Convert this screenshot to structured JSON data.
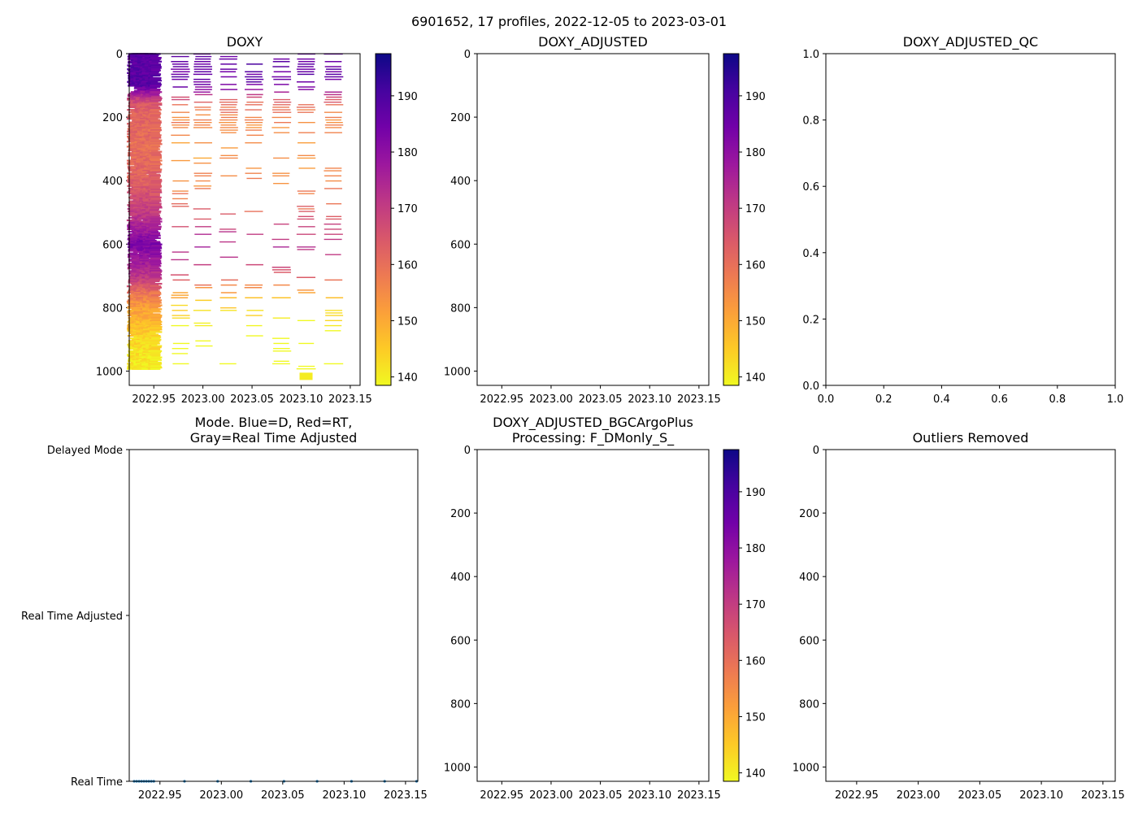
{
  "figure": {
    "suptitle": "6901652, 17 profiles, 2022-12-05 to 2023-03-01"
  },
  "colormap": {
    "name": "plasma_r",
    "stops": [
      "#f0f921",
      "#fdca26",
      "#fb9f3a",
      "#ed7953",
      "#d8576b",
      "#bd3786",
      "#9c179e",
      "#7201a8",
      "#46039f",
      "#0d0887"
    ]
  },
  "chart_data": [
    {
      "id": "doxy",
      "type": "heatmap",
      "title": "DOXY",
      "xlim": [
        2022.925,
        2023.16
      ],
      "ylim": [
        1045,
        0
      ],
      "xticks": [
        "2022.95",
        "2023.00",
        "2023.05",
        "2023.10",
        "2023.15"
      ],
      "xtick_values": [
        2022.95,
        2023.0,
        2023.05,
        2023.1,
        2023.15
      ],
      "yticks": [
        "0",
        "200",
        "400",
        "600",
        "800",
        "1000"
      ],
      "ytick_values": [
        0,
        200,
        400,
        600,
        800,
        1000
      ],
      "colorbar": {
        "vmin": 138.5,
        "vmax": 197.5,
        "ticks": [
          "140",
          "150",
          "160",
          "170",
          "180",
          "190"
        ],
        "tick_values": [
          140,
          150,
          160,
          170,
          180,
          190
        ]
      },
      "profiles": [
        {
          "time": 2022.929,
          "spacing": 4,
          "max_depth": 995
        },
        {
          "time": 2022.932,
          "spacing": 4,
          "max_depth": 995
        },
        {
          "time": 2022.935,
          "spacing": 4,
          "max_depth": 995
        },
        {
          "time": 2022.938,
          "spacing": 4,
          "max_depth": 995
        },
        {
          "time": 2022.941,
          "spacing": 4,
          "max_depth": 995
        },
        {
          "time": 2022.944,
          "spacing": 4,
          "max_depth": 995
        },
        {
          "time": 2022.947,
          "spacing": 4,
          "max_depth": 995
        },
        {
          "time": 2022.95,
          "spacing": 4,
          "max_depth": 995
        },
        {
          "time": 2022.952,
          "spacing": 4,
          "max_depth": 995
        },
        {
          "time": 2022.977,
          "spacing": 8,
          "max_depth": 985
        },
        {
          "time": 2023.0,
          "spacing": 8,
          "max_depth": 985
        },
        {
          "time": 2023.026,
          "spacing": 8,
          "max_depth": 985
        },
        {
          "time": 2023.052,
          "spacing": 8,
          "max_depth": 985
        },
        {
          "time": 2023.08,
          "spacing": 8,
          "max_depth": 985
        },
        {
          "time": 2023.105,
          "spacing": 8,
          "max_depth": 1030
        },
        {
          "time": 2023.133,
          "spacing": 8,
          "max_depth": 985
        }
      ],
      "depth_profile": {
        "depth": [
          0,
          100,
          130,
          160,
          200,
          300,
          400,
          500,
          600,
          700,
          760,
          800,
          900,
          1000
        ],
        "doxy": [
          188,
          188,
          175,
          164,
          162,
          160,
          163,
          170,
          183,
          172,
          158,
          152,
          143,
          140
        ]
      }
    },
    {
      "id": "doxy_adjusted",
      "type": "heatmap",
      "title": "DOXY_ADJUSTED",
      "xlim": [
        2022.925,
        2023.16
      ],
      "ylim": [
        1045,
        0
      ],
      "xticks": [
        "2022.95",
        "2023.00",
        "2023.05",
        "2023.10",
        "2023.15"
      ],
      "xtick_values": [
        2022.95,
        2023.0,
        2023.05,
        2023.1,
        2023.15
      ],
      "yticks": [
        "0",
        "200",
        "400",
        "600",
        "800",
        "1000"
      ],
      "ytick_values": [
        0,
        200,
        400,
        600,
        800,
        1000
      ],
      "colorbar": {
        "vmin": 138.5,
        "vmax": 197.5,
        "ticks": [
          "140",
          "150",
          "160",
          "170",
          "180",
          "190"
        ],
        "tick_values": [
          140,
          150,
          160,
          170,
          180,
          190
        ]
      },
      "values": []
    },
    {
      "id": "doxy_adjusted_qc",
      "type": "scatter",
      "title": "DOXY_ADJUSTED_QC",
      "xlim": [
        0,
        1
      ],
      "ylim": [
        0,
        1
      ],
      "xticks": [
        "0.0",
        "0.2",
        "0.4",
        "0.6",
        "0.8",
        "1.0"
      ],
      "xtick_values": [
        0,
        0.2,
        0.4,
        0.6,
        0.8,
        1.0
      ],
      "yticks": [
        "0.0",
        "0.2",
        "0.4",
        "0.6",
        "0.8",
        "1.0"
      ],
      "ytick_values": [
        0,
        0.2,
        0.4,
        0.6,
        0.8,
        1.0
      ],
      "values": []
    },
    {
      "id": "mode",
      "type": "scatter",
      "title_lines": [
        "Mode. Blue=D, Red=RT,",
        "Gray=Real Time Adjusted"
      ],
      "xlim": [
        2022.925,
        2023.16
      ],
      "ylim": [
        0,
        2
      ],
      "xticks": [
        "2022.95",
        "2023.00",
        "2023.05",
        "2023.10",
        "2023.15"
      ],
      "xtick_values": [
        2022.95,
        2023.0,
        2023.05,
        2023.1,
        2023.15
      ],
      "yticks": [
        "Real Time",
        "Real Time Adjusted",
        "Delayed Mode"
      ],
      "ytick_values": [
        0,
        1,
        2
      ],
      "points_color": "#1f77b4",
      "points": [
        {
          "x": 2022.929,
          "y": 0
        },
        {
          "x": 2022.931,
          "y": 0
        },
        {
          "x": 2022.933,
          "y": 0
        },
        {
          "x": 2022.935,
          "y": 0
        },
        {
          "x": 2022.937,
          "y": 0
        },
        {
          "x": 2022.939,
          "y": 0
        },
        {
          "x": 2022.941,
          "y": 0
        },
        {
          "x": 2022.943,
          "y": 0
        },
        {
          "x": 2022.945,
          "y": 0
        },
        {
          "x": 2022.97,
          "y": 0
        },
        {
          "x": 2022.997,
          "y": 0
        },
        {
          "x": 2023.024,
          "y": 0
        },
        {
          "x": 2023.051,
          "y": 0
        },
        {
          "x": 2023.078,
          "y": 0
        },
        {
          "x": 2023.106,
          "y": 0
        },
        {
          "x": 2023.133,
          "y": 0
        },
        {
          "x": 2023.159,
          "y": 0
        }
      ]
    },
    {
      "id": "bgcargoplus",
      "type": "heatmap",
      "title_lines": [
        "DOXY_ADJUSTED_BGCArgoPlus",
        "Processing: F_DMonly_S_"
      ],
      "xlim": [
        2022.925,
        2023.16
      ],
      "ylim": [
        1045,
        0
      ],
      "xticks": [
        "2022.95",
        "2023.00",
        "2023.05",
        "2023.10",
        "2023.15"
      ],
      "xtick_values": [
        2022.95,
        2023.0,
        2023.05,
        2023.1,
        2023.15
      ],
      "yticks": [
        "0",
        "200",
        "400",
        "600",
        "800",
        "1000"
      ],
      "ytick_values": [
        0,
        200,
        400,
        600,
        800,
        1000
      ],
      "colorbar": {
        "vmin": 138.5,
        "vmax": 197.5,
        "ticks": [
          "140",
          "150",
          "160",
          "170",
          "180",
          "190"
        ],
        "tick_values": [
          140,
          150,
          160,
          170,
          180,
          190
        ]
      },
      "values": []
    },
    {
      "id": "outliers",
      "type": "scatter",
      "title": "Outliers Removed",
      "xlim": [
        2022.925,
        2023.16
      ],
      "ylim": [
        1045,
        0
      ],
      "xticks": [
        "2022.95",
        "2023.00",
        "2023.05",
        "2023.10",
        "2023.15"
      ],
      "xtick_values": [
        2022.95,
        2023.0,
        2023.05,
        2023.1,
        2023.15
      ],
      "yticks": [
        "0",
        "200",
        "400",
        "600",
        "800",
        "1000"
      ],
      "ytick_values": [
        0,
        200,
        400,
        600,
        800,
        1000
      ],
      "values": []
    }
  ]
}
